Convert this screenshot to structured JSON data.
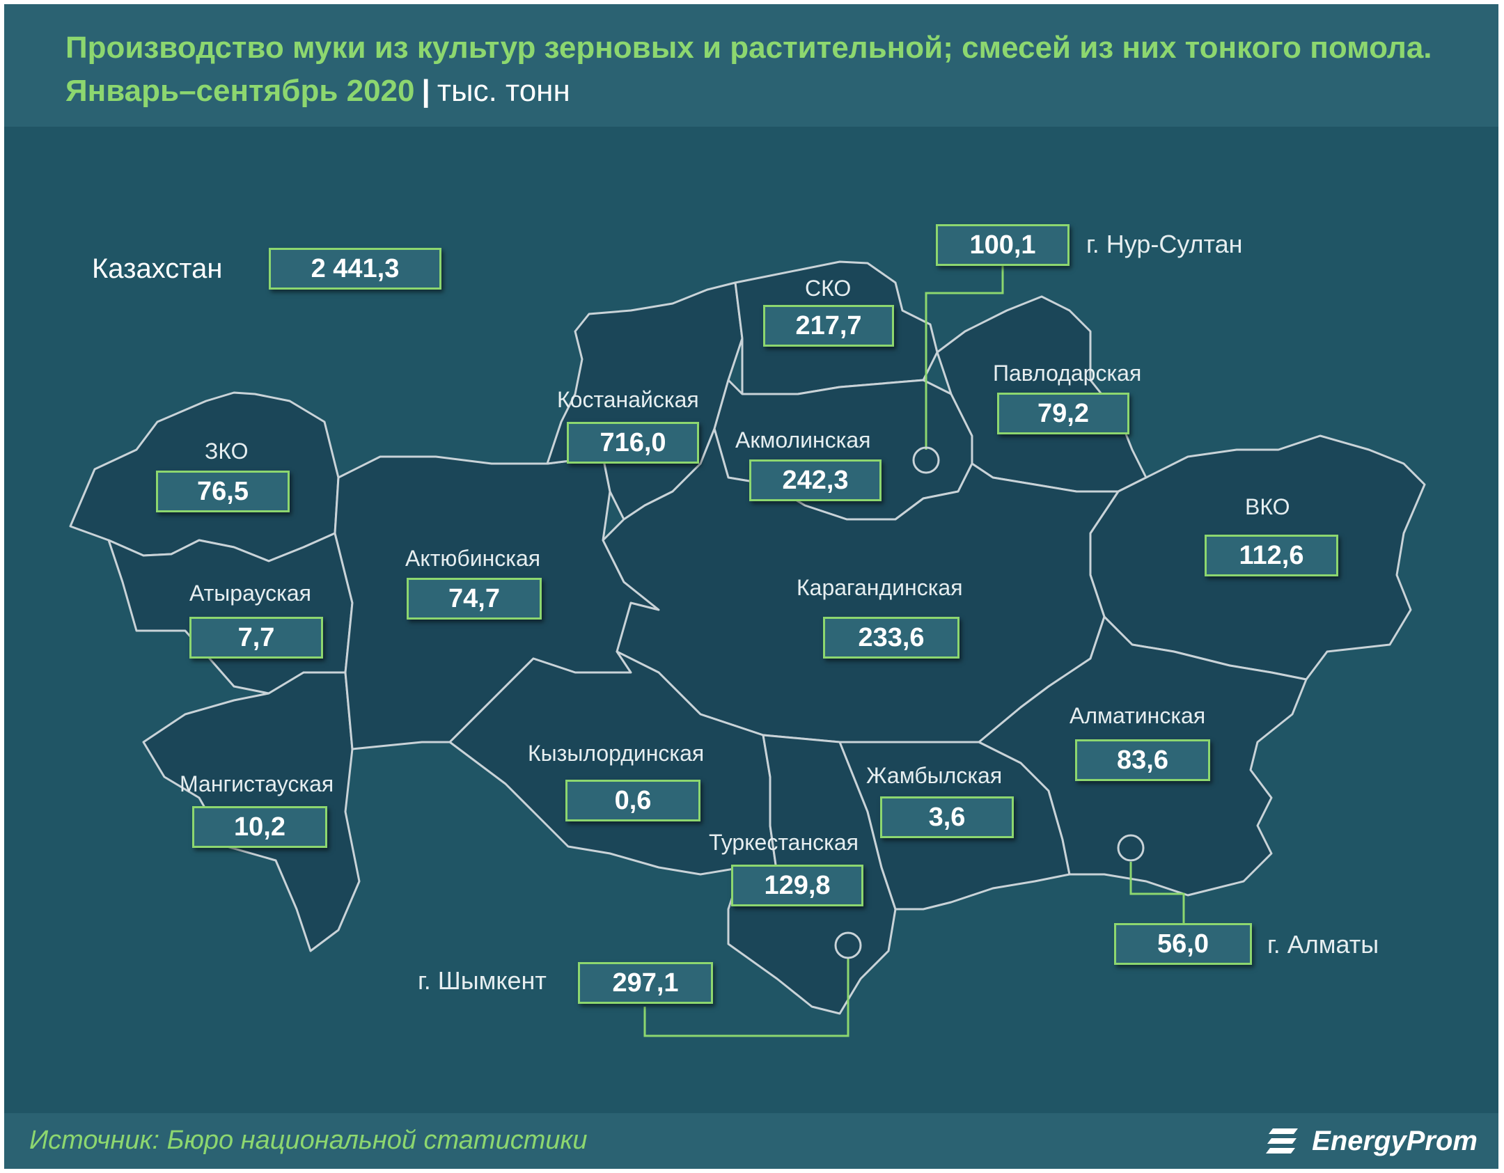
{
  "title": {
    "line1": "Производство муки из культур зерновых и растительной; смесей из них тонкого помола.",
    "line2": "Январь–сентябрь 2020",
    "separator": "|",
    "unit": "тыс. тонн"
  },
  "total": {
    "label": "Казахстан",
    "value": "2 441,3"
  },
  "regions": {
    "sko": {
      "name": "СКО",
      "value": "217,7"
    },
    "kostanay": {
      "name": "Костанайская",
      "value": "716,0"
    },
    "akmola": {
      "name": "Акмолинская",
      "value": "242,3"
    },
    "pavlodar": {
      "name": "Павлодарская",
      "value": "79,2"
    },
    "zko": {
      "name": "ЗКО",
      "value": "76,5"
    },
    "aktobe": {
      "name": "Актюбинская",
      "value": "74,7"
    },
    "atyrau": {
      "name": "Атырауская",
      "value": "7,7"
    },
    "karaganda": {
      "name": "Карагандинская",
      "value": "233,6"
    },
    "vko": {
      "name": "ВКО",
      "value": "112,6"
    },
    "almaty_region": {
      "name": "Алматинская",
      "value": "83,6"
    },
    "mangistau": {
      "name": "Мангистауская",
      "value": "10,2"
    },
    "kyzylorda": {
      "name": "Кызылординская",
      "value": "0,6"
    },
    "zhambyl": {
      "name": "Жамбылская",
      "value": "3,6"
    },
    "turkestan": {
      "name": "Туркестанская",
      "value": "129,8"
    }
  },
  "cities": {
    "nur_sultan": {
      "name": "г. Нур-Султан",
      "value": "100,1"
    },
    "shymkent": {
      "name": "г. Шымкент",
      "value": "297,1"
    },
    "almaty": {
      "name": "г. Алматы",
      "value": "56,0"
    }
  },
  "source": "Источник: Бюро национальной  статистики",
  "logo": "EnergyProm",
  "colors": {
    "background": "#205565",
    "header": "#2b6272",
    "region_fill": "#1b4658",
    "border": "#c9d3d8",
    "accent": "#8dd76f",
    "value_box": "#2e6676"
  }
}
